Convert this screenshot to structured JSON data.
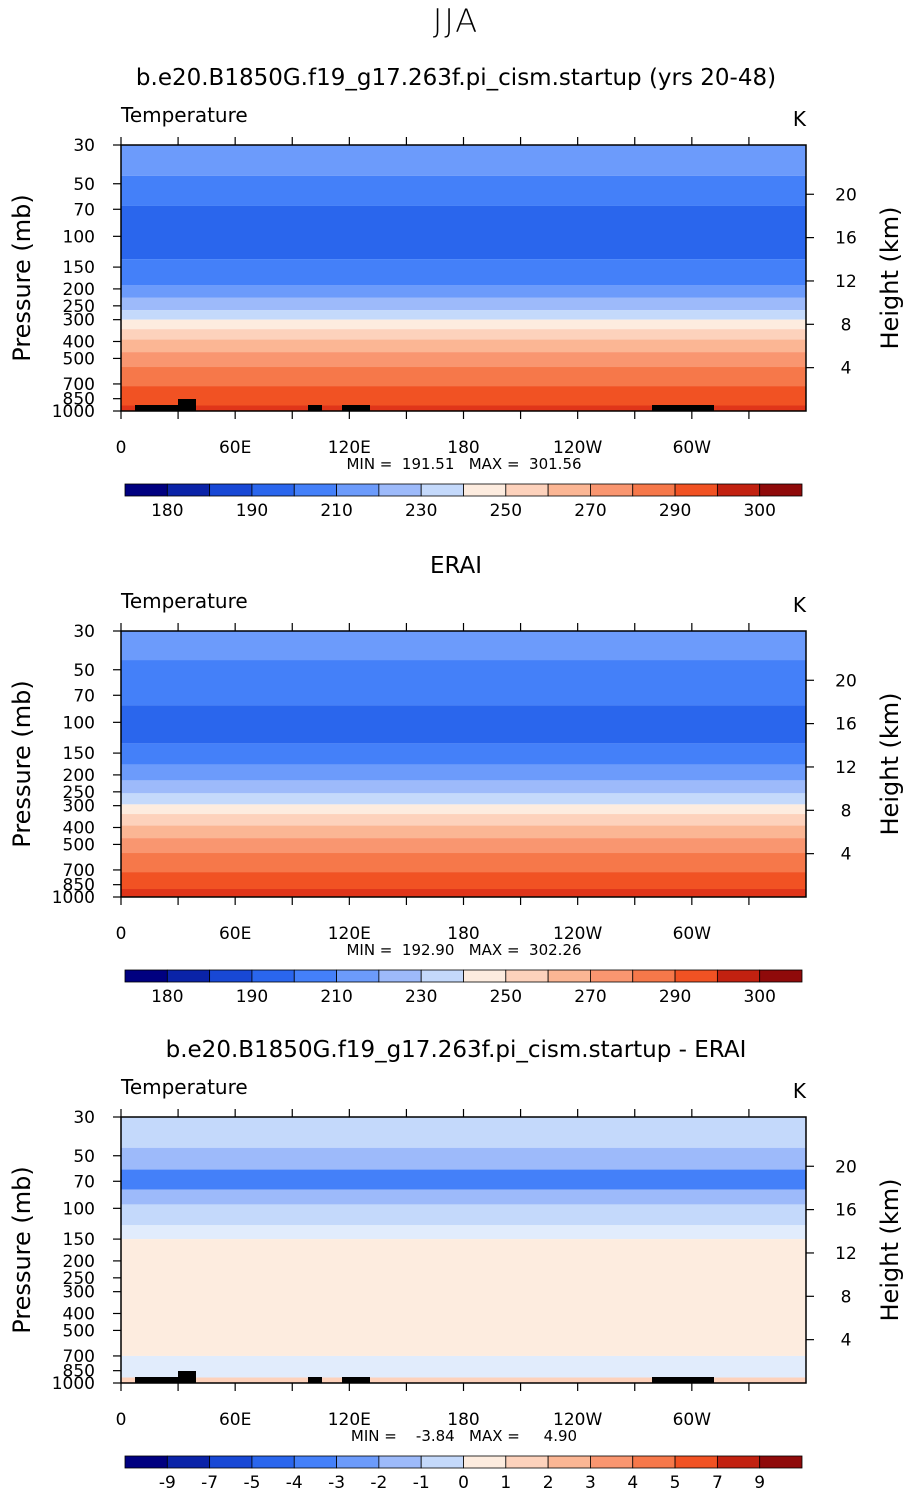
{
  "page_title": "JJA",
  "colors": {
    "temp": [
      "#000080",
      "#0a23a8",
      "#1848d5",
      "#2a66ed",
      "#4480f9",
      "#6c9bfb",
      "#9dbafa",
      "#c4d9fb",
      "#e1ecfc",
      "#fdecdf",
      "#fdd2bc",
      "#fbb694",
      "#f99670",
      "#f6784a",
      "#f15223",
      "#e0351a",
      "#c22110",
      "#8f0a0a"
    ],
    "diff": [
      "#000080",
      "#0a23a8",
      "#1848d5",
      "#2a66ed",
      "#4480f9",
      "#6c9bfb",
      "#9dbafa",
      "#c4d9fb",
      "#e1ecfc",
      "#fdecdf",
      "#fdd2bc",
      "#fbb694",
      "#f99670",
      "#f6784a",
      "#f15223",
      "#e0351a",
      "#c22110",
      "#8f0a0a"
    ]
  },
  "chart_data": [
    {
      "type": "heatmap",
      "title": "b.e20.B1850G.f19_g17.263f.pi_cism.startup (yrs 20-48)",
      "field_label": "Temperature",
      "units": "K",
      "ylabel": "Pressure (mb)",
      "ylabel_right": "Height (km)",
      "x_ticks": [
        "0",
        "60E",
        "120E",
        "180",
        "120W",
        "60W"
      ],
      "y_ticks": [
        "30",
        "50",
        "70",
        "100",
        "150",
        "200",
        "250",
        "300",
        "400",
        "500",
        "700",
        "850",
        "1000"
      ],
      "y_ticks_right": [
        "20",
        "16",
        "12",
        "8",
        "4"
      ],
      "min_label": "MIN = 191.51",
      "max_label": "MAX = 301.56",
      "minmax_text": "MIN =  191.51   MAX =  301.56",
      "colorbar_labels": [
        "180",
        "190",
        "210",
        "230",
        "250",
        "270",
        "290",
        "300"
      ],
      "bands_top_to_bottom": [
        {
          "p_top": 30,
          "p_bottom": 45,
          "level": 5
        },
        {
          "p_top": 45,
          "p_bottom": 67,
          "level": 4
        },
        {
          "p_top": 67,
          "p_bottom": 135,
          "level": 3
        },
        {
          "p_top": 135,
          "p_bottom": 190,
          "level": 4
        },
        {
          "p_top": 190,
          "p_bottom": 225,
          "level": 5
        },
        {
          "p_top": 225,
          "p_bottom": 265,
          "level": 6
        },
        {
          "p_top": 265,
          "p_bottom": 300,
          "level": 7
        },
        {
          "p_top": 300,
          "p_bottom": 340,
          "level": 9
        },
        {
          "p_top": 340,
          "p_bottom": 390,
          "level": 10
        },
        {
          "p_top": 390,
          "p_bottom": 460,
          "level": 11
        },
        {
          "p_top": 460,
          "p_bottom": 560,
          "level": 12
        },
        {
          "p_top": 560,
          "p_bottom": 720,
          "level": 13
        },
        {
          "p_top": 720,
          "p_bottom": 930,
          "level": 14
        },
        {
          "p_top": 930,
          "p_bottom": 1000,
          "level": 15
        }
      ]
    },
    {
      "type": "heatmap",
      "title": "ERAI",
      "field_label": "Temperature",
      "units": "K",
      "ylabel": "Pressure (mb)",
      "ylabel_right": "Height (km)",
      "x_ticks": [
        "0",
        "60E",
        "120E",
        "180",
        "120W",
        "60W"
      ],
      "y_ticks": [
        "30",
        "50",
        "70",
        "100",
        "150",
        "200",
        "250",
        "300",
        "400",
        "500",
        "700",
        "850",
        "1000"
      ],
      "y_ticks_right": [
        "20",
        "16",
        "12",
        "8",
        "4"
      ],
      "min_label": "MIN = 192.90",
      "max_label": "MAX = 302.26",
      "minmax_text": "MIN =  192.90   MAX =  302.26",
      "colorbar_labels": [
        "180",
        "190",
        "210",
        "230",
        "250",
        "270",
        "290",
        "300"
      ],
      "bands_top_to_bottom": [
        {
          "p_top": 30,
          "p_bottom": 44,
          "level": 5
        },
        {
          "p_top": 44,
          "p_bottom": 80,
          "level": 4
        },
        {
          "p_top": 80,
          "p_bottom": 132,
          "level": 3
        },
        {
          "p_top": 132,
          "p_bottom": 175,
          "level": 4
        },
        {
          "p_top": 175,
          "p_bottom": 215,
          "level": 5
        },
        {
          "p_top": 215,
          "p_bottom": 255,
          "level": 6
        },
        {
          "p_top": 255,
          "p_bottom": 295,
          "level": 7
        },
        {
          "p_top": 295,
          "p_bottom": 335,
          "level": 9
        },
        {
          "p_top": 335,
          "p_bottom": 390,
          "level": 10
        },
        {
          "p_top": 390,
          "p_bottom": 460,
          "level": 11
        },
        {
          "p_top": 460,
          "p_bottom": 560,
          "level": 12
        },
        {
          "p_top": 560,
          "p_bottom": 720,
          "level": 13
        },
        {
          "p_top": 720,
          "p_bottom": 900,
          "level": 14
        },
        {
          "p_top": 900,
          "p_bottom": 1000,
          "level": 15
        }
      ]
    },
    {
      "type": "heatmap",
      "title": "b.e20.B1850G.f19_g17.263f.pi_cism.startup - ERAI",
      "field_label": "Temperature",
      "units": "K",
      "ylabel": "Pressure (mb)",
      "ylabel_right": "Height (km)",
      "x_ticks": [
        "0",
        "60E",
        "120E",
        "180",
        "120W",
        "60W"
      ],
      "y_ticks": [
        "30",
        "50",
        "70",
        "100",
        "150",
        "200",
        "250",
        "300",
        "400",
        "500",
        "700",
        "850",
        "1000"
      ],
      "y_ticks_right": [
        "20",
        "16",
        "12",
        "8",
        "4"
      ],
      "min_label": "MIN = -3.84",
      "max_label": "MAX = 4.90",
      "minmax_text": "MIN =    -3.84   MAX =     4.90",
      "colorbar_labels": [
        "-9",
        "-7",
        "-5",
        "-4",
        "-3",
        "-2",
        "-1",
        "0",
        "1",
        "2",
        "3",
        "4",
        "5",
        "7",
        "9"
      ],
      "bands_top_to_bottom": [
        {
          "p_top": 30,
          "p_bottom": 45,
          "level": 7
        },
        {
          "p_top": 45,
          "p_bottom": 60,
          "level": 6
        },
        {
          "p_top": 60,
          "p_bottom": 78,
          "level": 4
        },
        {
          "p_top": 78,
          "p_bottom": 95,
          "level": 6
        },
        {
          "p_top": 95,
          "p_bottom": 125,
          "level": 7
        },
        {
          "p_top": 125,
          "p_bottom": 150,
          "level": 8
        },
        {
          "p_top": 150,
          "p_bottom": 700,
          "level": 9
        },
        {
          "p_top": 700,
          "p_bottom": 930,
          "level": 8
        },
        {
          "p_top": 930,
          "p_bottom": 1000,
          "level": 10
        }
      ]
    }
  ]
}
